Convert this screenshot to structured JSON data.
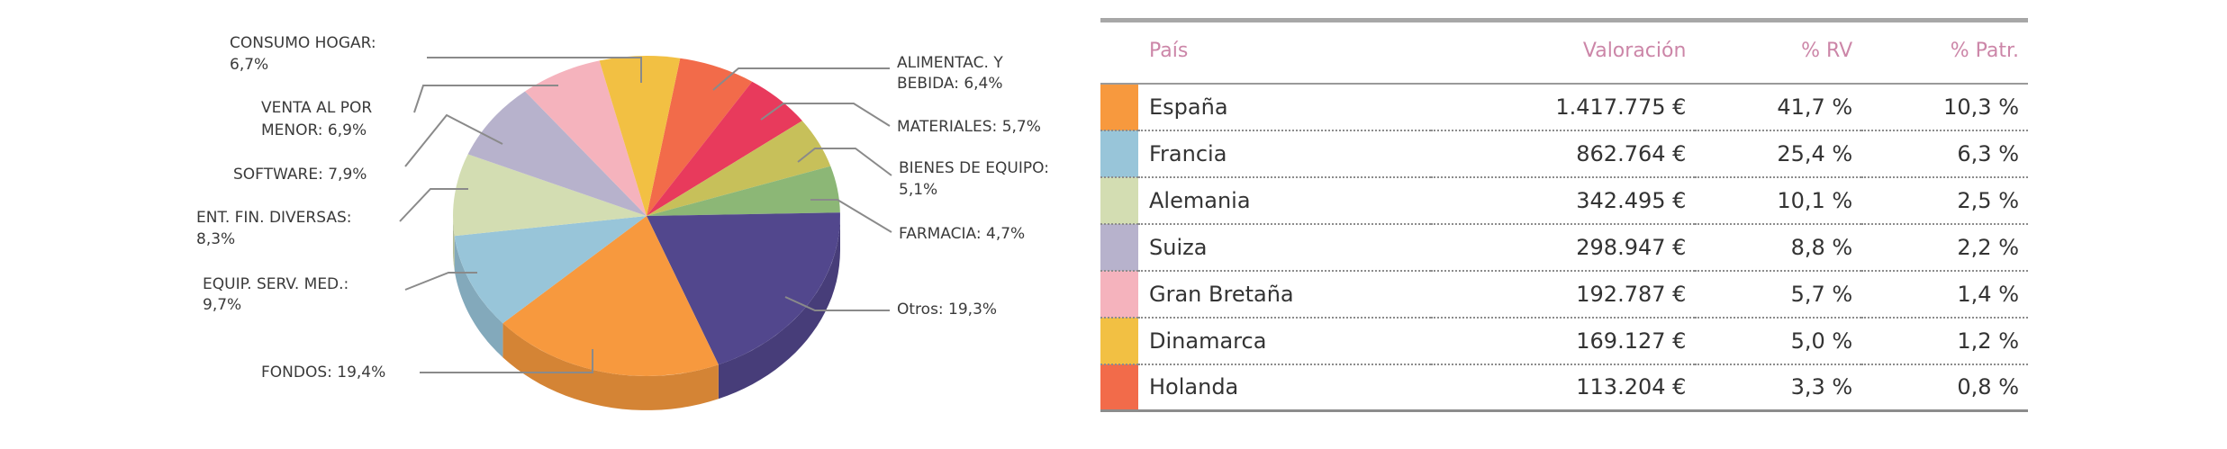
{
  "chart_data": [
    {
      "type": "pie",
      "slices": [
        {
          "label": "ALIMENTAC. Y BEBIDA: 6,4%",
          "value": 6.4,
          "color": "#f26b4a"
        },
        {
          "label": "MATERIALES: 5,7%",
          "value": 5.7,
          "color": "#e83a5c"
        },
        {
          "label": "BIENES DE EQUIPO: 5,1%",
          "value": 5.1,
          "color": "#c7c05a"
        },
        {
          "label": "FARMACIA: 4,7%",
          "value": 4.7,
          "color": "#8cb776"
        },
        {
          "label": "Otros: 19,3%",
          "value": 19.3,
          "color": "#52478d"
        },
        {
          "label": "FONDOS: 19,4%",
          "value": 19.4,
          "color": "#f7993e"
        },
        {
          "label": "EQUIP. SERV. MED.: 9,7%",
          "value": 9.7,
          "color": "#98c5d9"
        },
        {
          "label": "ENT. FIN. DIVERSAS: 8,3%",
          "value": 8.3,
          "color": "#d3ddb2"
        },
        {
          "label": "SOFTWARE: 7,9%",
          "value": 7.9,
          "color": "#b7b2cc"
        },
        {
          "label": "VENTA AL POR MENOR: 6,9%",
          "value": 6.9,
          "color": "#f5b3bd"
        },
        {
          "label": "CONSUMO HOGAR: 6,7%",
          "value": 6.7,
          "color": "#f2c043"
        }
      ]
    },
    {
      "type": "table",
      "columns": [
        "País",
        "Valoración",
        "% RV",
        "% Patr."
      ],
      "rows": [
        {
          "color": "#f7993e",
          "pais": "España",
          "valoracion": "1.417.775 €",
          "rv": "41,7 %",
          "patr": "10,3 %"
        },
        {
          "color": "#98c5d9",
          "pais": "Francia",
          "valoracion": "862.764 €",
          "rv": "25,4 %",
          "patr": "6,3 %"
        },
        {
          "color": "#d3ddb2",
          "pais": "Alemania",
          "valoracion": "342.495 €",
          "rv": "10,1 %",
          "patr": "2,5 %"
        },
        {
          "color": "#b7b2cc",
          "pais": "Suiza",
          "valoracion": "298.947 €",
          "rv": "8,8 %",
          "patr": "2,2 %"
        },
        {
          "color": "#f5b3bd",
          "pais": "Gran Bretaña",
          "valoracion": "192.787 €",
          "rv": "5,7 %",
          "patr": "1,4 %"
        },
        {
          "color": "#f2c043",
          "pais": "Dinamarca",
          "valoracion": "169.127 €",
          "rv": "5,0 %",
          "patr": "1,2 %"
        },
        {
          "color": "#f26b4a",
          "pais": "Holanda",
          "valoracion": "113.204 €",
          "rv": "3,3 %",
          "patr": "0,8 %"
        }
      ]
    }
  ]
}
